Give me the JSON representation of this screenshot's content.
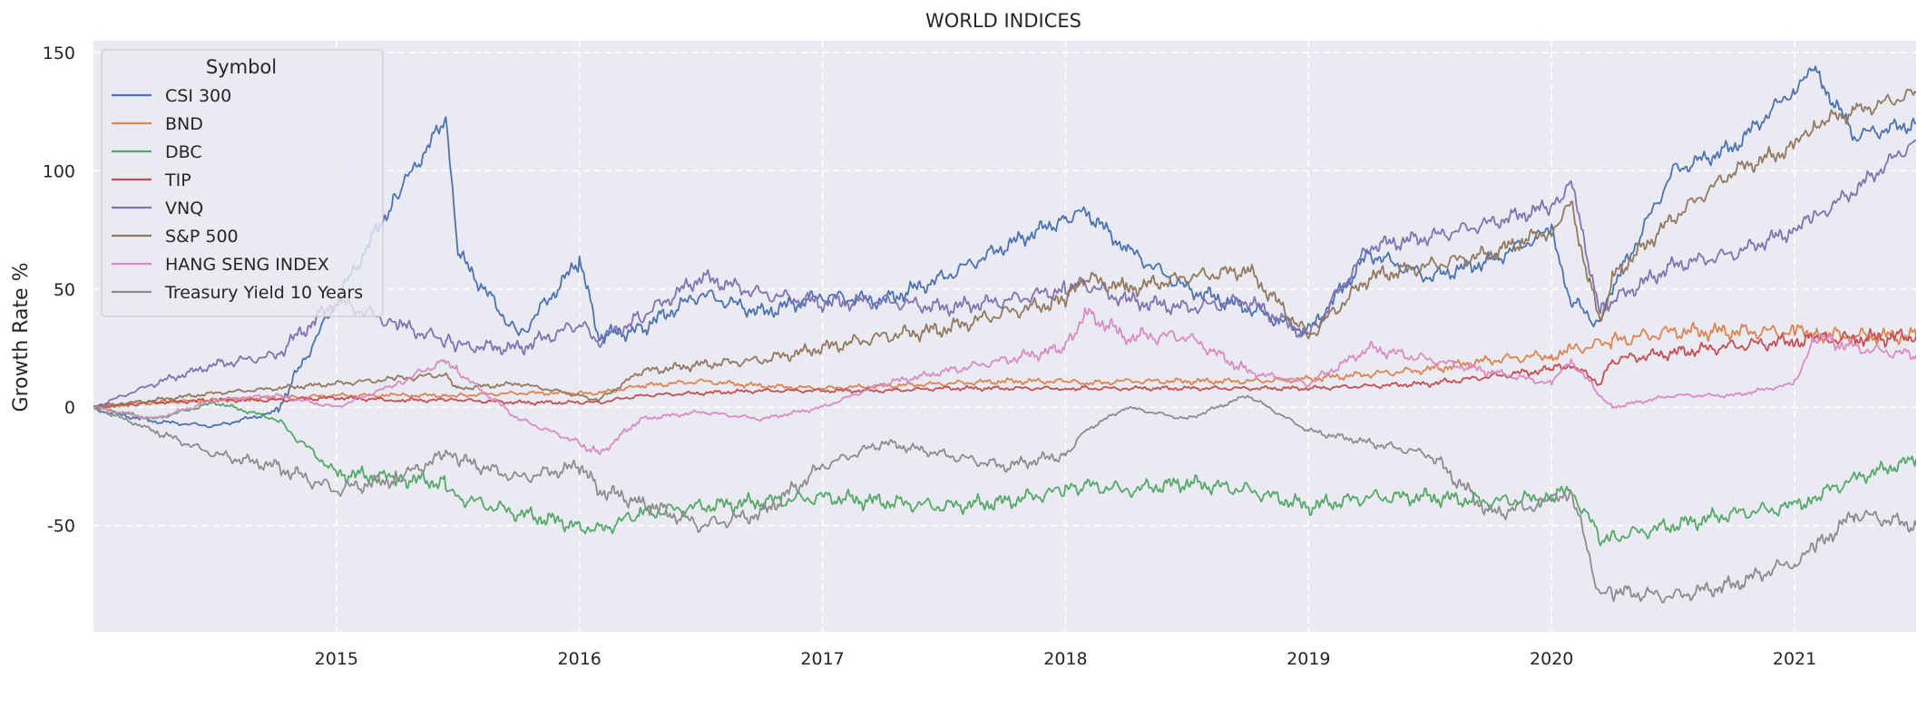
{
  "chart_data": {
    "type": "line",
    "title": "WORLD INDICES",
    "xlabel": "",
    "ylabel": "Growth Rate %",
    "xlim": [
      2014.0,
      2021.5
    ],
    "ylim": [
      -95,
      155
    ],
    "x_ticks": [
      2015,
      2016,
      2017,
      2018,
      2019,
      2020,
      2021
    ],
    "x_tick_labels": [
      "2015",
      "2016",
      "2017",
      "2018",
      "2019",
      "2020",
      "2021"
    ],
    "y_ticks": [
      -50,
      0,
      50,
      100,
      150
    ],
    "y_tick_labels": [
      "-50",
      "0",
      "50",
      "100",
      "150"
    ],
    "grid": true,
    "background": "#eaeaf2",
    "legend": {
      "title": "Symbol",
      "placement": "top-left"
    },
    "x": [
      2014.0,
      2014.25,
      2014.5,
      2014.75,
      2015.0,
      2015.25,
      2015.45,
      2015.5,
      2015.75,
      2016.0,
      2016.08,
      2016.25,
      2016.5,
      2016.75,
      2017.0,
      2017.25,
      2017.5,
      2017.75,
      2018.0,
      2018.08,
      2018.25,
      2018.5,
      2018.75,
      2019.0,
      2019.25,
      2019.5,
      2019.75,
      2020.0,
      2020.08,
      2020.2,
      2020.25,
      2020.5,
      2020.75,
      2021.0,
      2021.08,
      2021.25,
      2021.5
    ],
    "series": [
      {
        "name": "CSI 300",
        "color": "#4c72b0",
        "values": [
          -1,
          -6,
          -8,
          -2,
          45,
          90,
          122,
          65,
          30,
          62,
          30,
          33,
          48,
          40,
          47,
          45,
          55,
          68,
          80,
          83,
          67,
          50,
          42,
          32,
          65,
          55,
          62,
          75,
          45,
          35,
          50,
          100,
          110,
          135,
          142,
          115,
          120
        ]
      },
      {
        "name": "BND",
        "color": "#dd8452",
        "values": [
          0,
          2,
          3,
          4,
          5,
          5,
          5,
          5,
          6,
          6,
          6,
          9,
          11,
          9,
          8,
          9,
          10,
          11,
          11,
          10,
          11,
          11,
          11,
          12,
          14,
          16,
          20,
          22,
          24,
          27,
          28,
          32,
          32,
          32,
          31,
          30,
          30
        ]
      },
      {
        "name": "DBC",
        "color": "#55a868",
        "values": [
          0,
          -5,
          2,
          -5,
          -28,
          -30,
          -32,
          -38,
          -45,
          -50,
          -52,
          -45,
          -42,
          -40,
          -38,
          -40,
          -42,
          -40,
          -35,
          -33,
          -35,
          -32,
          -35,
          -42,
          -38,
          -38,
          -40,
          -38,
          -35,
          -55,
          -55,
          -50,
          -45,
          -42,
          -38,
          -30,
          -22
        ]
      },
      {
        "name": "TIP",
        "color": "#c44e52",
        "values": [
          0,
          2,
          3,
          3,
          4,
          3,
          3,
          3,
          2,
          2,
          2,
          5,
          6,
          7,
          7,
          7,
          8,
          8,
          8,
          8,
          8,
          8,
          8,
          8,
          9,
          10,
          13,
          16,
          18,
          10,
          20,
          23,
          26,
          28,
          29,
          29,
          30
        ]
      },
      {
        "name": "VNQ",
        "color": "#8172b3",
        "values": [
          0,
          10,
          18,
          22,
          45,
          35,
          28,
          26,
          25,
          35,
          28,
          38,
          55,
          48,
          44,
          45,
          42,
          45,
          50,
          52,
          45,
          42,
          45,
          30,
          68,
          72,
          78,
          85,
          95,
          40,
          45,
          60,
          65,
          75,
          80,
          92,
          113
        ]
      },
      {
        "name": "S&P 500",
        "color": "#937860",
        "values": [
          0,
          3,
          6,
          8,
          10,
          12,
          14,
          8,
          10,
          5,
          3,
          15,
          18,
          20,
          25,
          30,
          33,
          40,
          45,
          55,
          50,
          55,
          58,
          30,
          55,
          60,
          65,
          75,
          85,
          35,
          55,
          80,
          100,
          110,
          120,
          125,
          133
        ]
      },
      {
        "name": "HANG SENG INDEX",
        "color": "#da8bc3",
        "values": [
          0,
          -5,
          3,
          5,
          0,
          10,
          20,
          15,
          -5,
          -15,
          -20,
          -5,
          -2,
          -5,
          0,
          10,
          15,
          20,
          25,
          40,
          30,
          30,
          15,
          10,
          25,
          20,
          15,
          10,
          20,
          5,
          0,
          5,
          5,
          10,
          30,
          25,
          22
        ]
      },
      {
        "name": "Treasury Yield 10 Years",
        "color": "#8c8c8c",
        "values": [
          0,
          -10,
          -20,
          -25,
          -35,
          -30,
          -20,
          -22,
          -30,
          -25,
          -35,
          -40,
          -50,
          -45,
          -25,
          -15,
          -20,
          -25,
          -20,
          -10,
          0,
          -5,
          5,
          -10,
          -15,
          -20,
          -45,
          -40,
          -35,
          -80,
          -78,
          -80,
          -75,
          -65,
          -60,
          -45,
          -50
        ]
      }
    ]
  }
}
